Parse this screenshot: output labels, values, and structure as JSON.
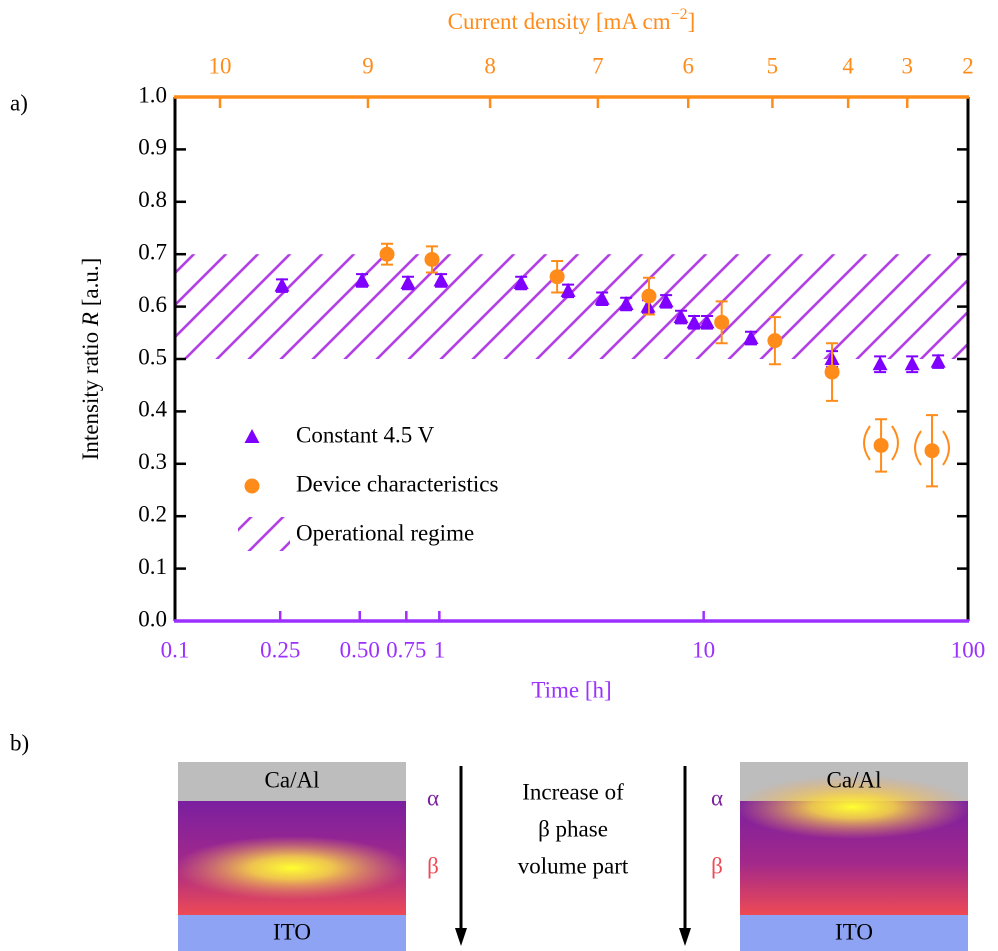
{
  "chart_data": {
    "type": "scatter",
    "panel_label": "a)",
    "x2label": [
      "Current density [mA cm",
      "−2",
      "]"
    ],
    "xlabel": "Time [h]",
    "ylabel": [
      "Intensity ratio ",
      "R",
      " [a.u.]"
    ],
    "xscale": "log",
    "xlim": [
      0.1,
      100
    ],
    "xticks": [
      0.1,
      0.25,
      {
        "value": 0.5,
        "label": "0.50"
      },
      0.75,
      1,
      10,
      100
    ],
    "x2ticks": [
      {
        "value": 0.148,
        "label": "10"
      },
      {
        "value": 0.537,
        "label": "9"
      },
      {
        "value": 1.556,
        "label": "8"
      },
      {
        "value": 3.98,
        "label": "7"
      },
      {
        "value": 8.74,
        "label": "6"
      },
      {
        "value": 18.2,
        "label": "5"
      },
      {
        "value": 35.2,
        "label": "4"
      },
      {
        "value": 58.9,
        "label": "3"
      },
      {
        "value": 100,
        "label": "2"
      }
    ],
    "ylim": [
      0,
      1
    ],
    "yticks": [
      {
        "value": 0,
        "label": "0.0"
      },
      0.1,
      0.2,
      0.3,
      0.4,
      0.5,
      0.6,
      0.7,
      0.8,
      0.9,
      {
        "value": 1,
        "label": "1.0"
      }
    ],
    "xcolor": "#9b30ff",
    "x2color": "#ff8c1a",
    "legend": "lower left",
    "series": [
      {
        "name": "Constant 4.5 V",
        "marker": "triangle",
        "color": "#7f00ff",
        "x": [
          0.254,
          0.51,
          0.761,
          1.015,
          2.04,
          3.07,
          4.13,
          5.09,
          6.16,
          7.21,
          8.21,
          9.2,
          10.3,
          15.1,
          30.6,
          46.5,
          61.5,
          77.1
        ],
        "values": [
          0.64,
          0.65,
          0.645,
          0.65,
          0.645,
          0.63,
          0.615,
          0.605,
          0.6,
          0.61,
          0.58,
          0.57,
          0.57,
          0.54,
          0.5,
          0.49,
          0.49,
          0.495
        ],
        "errors": [
          0.012,
          0.012,
          0.012,
          0.012,
          0.012,
          0.012,
          0.012,
          0.012,
          0.012,
          0.012,
          0.012,
          0.012,
          0.012,
          0.012,
          0.015,
          0.015,
          0.015,
          0.012
        ]
      },
      {
        "name": "Device characteristics",
        "marker": "circle",
        "color": "#ff8c1a",
        "x": [
          0.634,
          0.938,
          2.79,
          6.21,
          11.7,
          18.6,
          30.6,
          46.9,
          73.1
        ],
        "values": [
          0.7,
          0.69,
          0.657,
          0.62,
          0.57,
          0.535,
          0.475,
          0.335,
          0.325
        ],
        "errors": [
          0.02,
          0.025,
          0.03,
          0.035,
          0.04,
          0.045,
          0.055,
          0.05,
          0.068
        ]
      }
    ],
    "band": {
      "name": "Operational regime",
      "range": [
        0.5,
        0.7
      ],
      "color": "#b340e6"
    }
  },
  "diagram": {
    "panel_label": "b)",
    "left": {
      "top": "Ca/Al",
      "bottom": "ITO",
      "upper_phase": "α",
      "lower_phase": "β"
    },
    "arrow_text": [
      "Increase of",
      "β phase",
      "volume part"
    ],
    "right": {
      "top": "Ca/Al",
      "bottom": "ITO",
      "upper_phase": "α",
      "lower_phase": "β"
    }
  }
}
